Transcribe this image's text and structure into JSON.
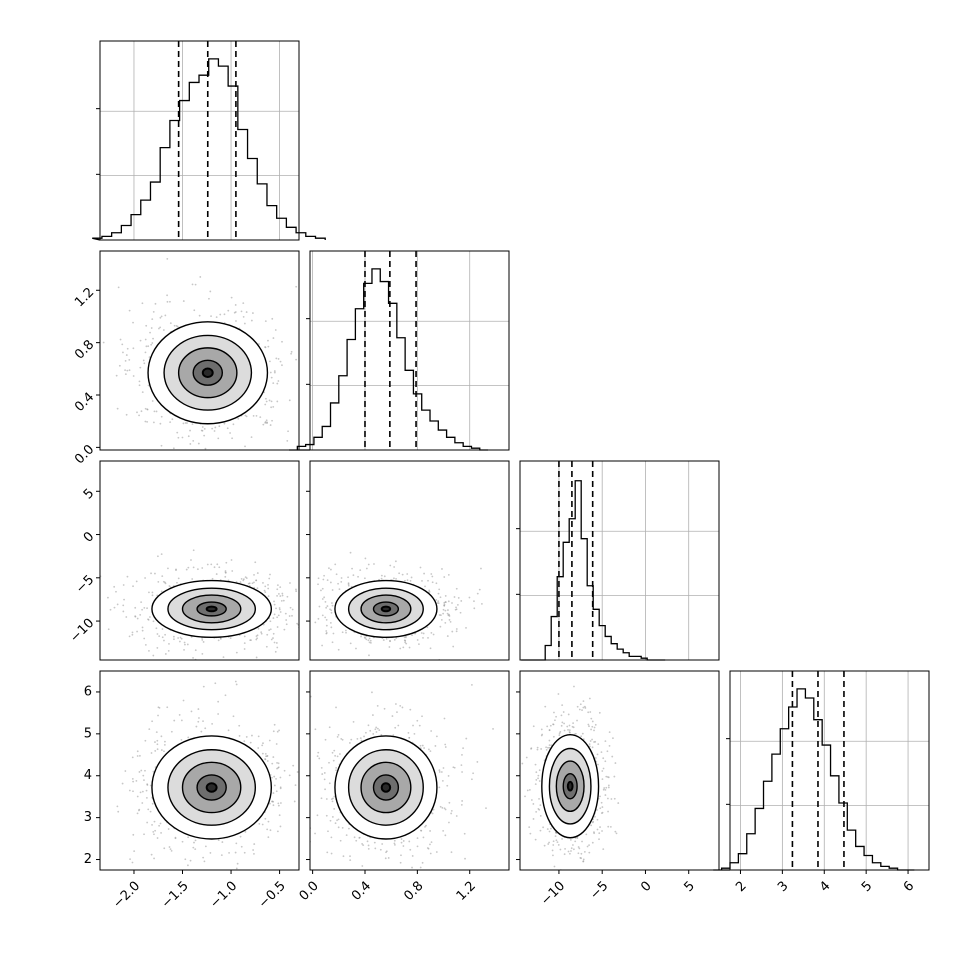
{
  "chart_data": {
    "type": "corner",
    "parameters": [
      {
        "ticks": [
          -2.0,
          -1.5,
          -1.0,
          -0.5
        ],
        "tick_labels": [
          "−2.0",
          "−1.5",
          "−1.0",
          "−0.5"
        ],
        "range": [
          -2.35,
          -0.3
        ],
        "quantiles": [
          -1.54,
          -1.24,
          -0.95
        ],
        "mode": -1.23,
        "sigma": 0.3
      },
      {
        "ticks": [
          0.0,
          0.4,
          0.8,
          1.2
        ],
        "tick_labels": [
          "0.0",
          "0.4",
          "0.8",
          "1.2"
        ],
        "range": [
          -0.02,
          1.5
        ],
        "quantiles": [
          0.4,
          0.59,
          0.79
        ],
        "mode": 0.58,
        "sigma": 0.19
      },
      {
        "ticks": [
          -10,
          -5,
          0,
          5
        ],
        "tick_labels": [
          "−10",
          "−5",
          "0",
          "5"
        ],
        "range": [
          -14.5,
          8.5
        ],
        "quantiles": [
          -10.0,
          -8.5,
          -6.1
        ],
        "mode": -8.6,
        "sigma": 1.6
      },
      {
        "ticks": [
          2,
          3,
          4,
          5,
          6
        ],
        "tick_labels": [
          "2",
          "3",
          "4",
          "5",
          "6"
        ],
        "range": [
          1.75,
          6.5
        ],
        "quantiles": [
          3.24,
          3.85,
          4.47
        ],
        "mode": 3.75,
        "sigma": 0.6
      }
    ],
    "histograms": [
      [
        1,
        2,
        4,
        8,
        14,
        22,
        32,
        51,
        66,
        77,
        87,
        91,
        100,
        96,
        85,
        61,
        45,
        31,
        19,
        12,
        7,
        4,
        2,
        1
      ],
      [
        0,
        2,
        3,
        7,
        13,
        26,
        41,
        61,
        78,
        92,
        100,
        93,
        81,
        62,
        44,
        31,
        22,
        16,
        11,
        7,
        4,
        2,
        1,
        0
      ],
      [
        0,
        0,
        0,
        0,
        8,
        24,
        46,
        65,
        78,
        99,
        67,
        41,
        28,
        19,
        13,
        9,
        6,
        4,
        2,
        2,
        1,
        0,
        0,
        0
      ],
      [
        0,
        1,
        4,
        9,
        20,
        34,
        49,
        64,
        78,
        90,
        100,
        95,
        83,
        69,
        52,
        37,
        22,
        13,
        8,
        4,
        2,
        1,
        0,
        0
      ]
    ],
    "joint_modes": [
      {
        "row": 1,
        "col": 0,
        "x": -1.24,
        "y": 0.57
      },
      {
        "row": 2,
        "col": 0,
        "x": -1.2,
        "y": -8.6
      },
      {
        "row": 2,
        "col": 1,
        "x": 0.56,
        "y": -8.6
      },
      {
        "row": 3,
        "col": 0,
        "x": -1.2,
        "y": 3.72
      },
      {
        "row": 3,
        "col": 1,
        "x": 0.56,
        "y": 3.72
      },
      {
        "row": 3,
        "col": 2,
        "x": -8.7,
        "y": 3.75
      }
    ],
    "grid": true,
    "colors": {
      "line": "#000000",
      "grid": "#b0b0b0",
      "points": "#999999",
      "fill": "#404040"
    }
  }
}
